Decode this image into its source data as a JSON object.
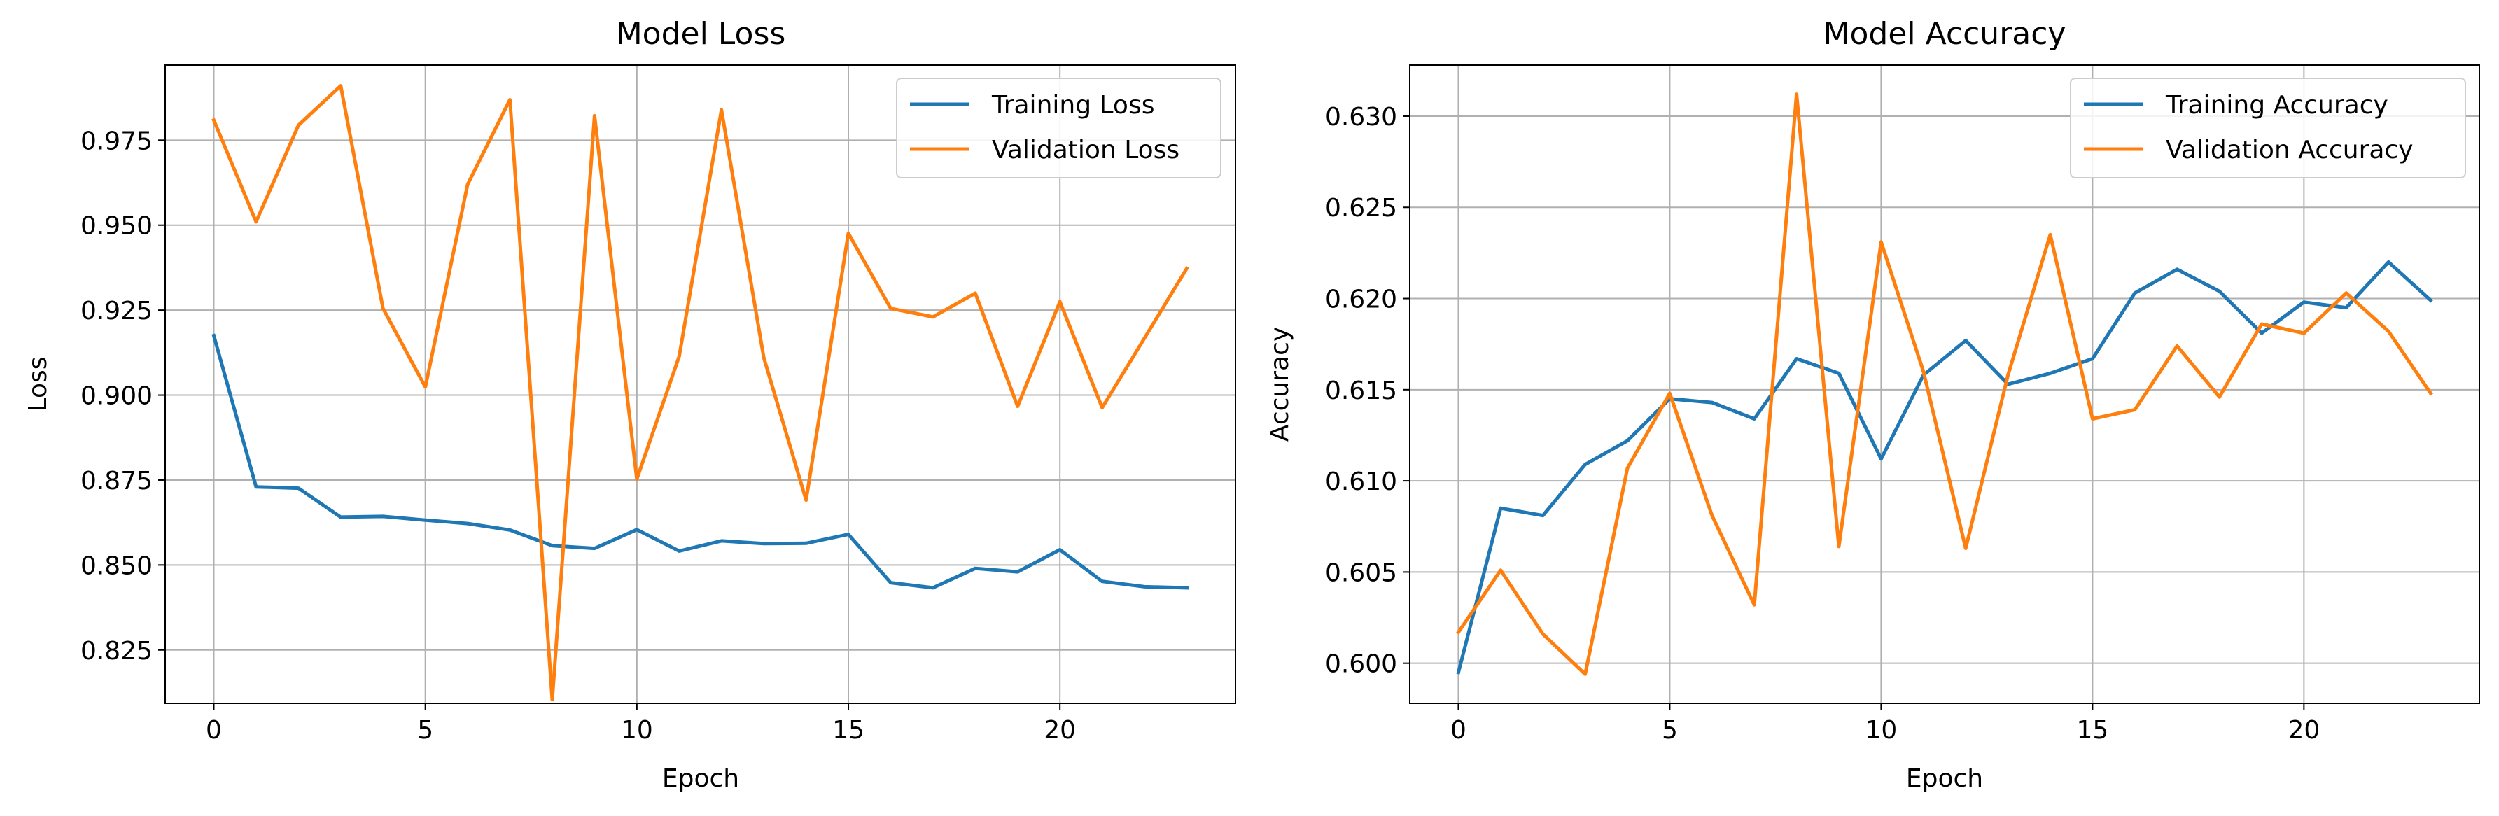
{
  "chart_data": [
    {
      "type": "line",
      "title": "Model Loss",
      "xlabel": "Epoch",
      "ylabel": "Loss",
      "xlim": [
        -1.15,
        24.15
      ],
      "ylim": [
        0.8093,
        0.9971
      ],
      "xticks": [
        0,
        5,
        10,
        15,
        20
      ],
      "xtick_labels": [
        "0",
        "5",
        "10",
        "15",
        "20"
      ],
      "yticks": [
        0.825,
        0.85,
        0.875,
        0.9,
        0.925,
        0.95,
        0.975
      ],
      "ytick_labels": [
        "0.825",
        "0.850",
        "0.875",
        "0.900",
        "0.925",
        "0.950",
        "0.975"
      ],
      "grid": true,
      "legend": "top-right",
      "x": [
        0,
        1,
        2,
        3,
        4,
        5,
        6,
        7,
        8,
        9,
        10,
        11,
        12,
        13,
        14,
        15,
        16,
        17,
        18,
        19,
        20,
        21,
        22,
        23
      ],
      "series": [
        {
          "name": "Training Loss",
          "color": "#1f77b4",
          "values": [
            0.9175,
            0.873,
            0.8726,
            0.8641,
            0.8643,
            0.8632,
            0.8622,
            0.8603,
            0.8557,
            0.8549,
            0.8604,
            0.8541,
            0.8571,
            0.8563,
            0.8564,
            0.859,
            0.8448,
            0.8433,
            0.849,
            0.848,
            0.8545,
            0.8452,
            0.8436,
            0.8433
          ]
        },
        {
          "name": "Validation Loss",
          "color": "#ff7f0e",
          "values": [
            0.9809,
            0.951,
            0.9794,
            0.991,
            0.9255,
            0.9024,
            0.962,
            0.9869,
            0.8104,
            0.9822,
            0.8753,
            0.9114,
            0.9839,
            0.911,
            0.8691,
            0.9476,
            0.9255,
            0.923,
            0.93,
            0.8967,
            0.9275,
            0.8963,
            0.9168,
            0.9373
          ]
        }
      ]
    },
    {
      "type": "line",
      "title": "Model Accuracy",
      "xlabel": "Epoch",
      "ylabel": "Accuracy",
      "xlim": [
        -1.15,
        24.15
      ],
      "ylim": [
        0.5978,
        0.6328
      ],
      "xticks": [
        0,
        5,
        10,
        15,
        20
      ],
      "xtick_labels": [
        "0",
        "5",
        "10",
        "15",
        "20"
      ],
      "yticks": [
        0.6,
        0.605,
        0.61,
        0.615,
        0.62,
        0.625,
        0.63
      ],
      "ytick_labels": [
        "0.600",
        "0.605",
        "0.610",
        "0.615",
        "0.620",
        "0.625",
        "0.630"
      ],
      "grid": true,
      "legend": "top-right",
      "x": [
        0,
        1,
        2,
        3,
        4,
        5,
        6,
        7,
        8,
        9,
        10,
        11,
        12,
        13,
        14,
        15,
        16,
        17,
        18,
        19,
        20,
        21,
        22,
        23
      ],
      "series": [
        {
          "name": "Training Accuracy",
          "color": "#1f77b4",
          "values": [
            0.5995,
            0.6085,
            0.6081,
            0.6109,
            0.6122,
            0.6145,
            0.6143,
            0.6134,
            0.6167,
            0.6159,
            0.6112,
            0.6158,
            0.6177,
            0.6153,
            0.6159,
            0.6167,
            0.6203,
            0.6216,
            0.6204,
            0.6181,
            0.6198,
            0.6195,
            0.622,
            0.6199
          ]
        },
        {
          "name": "Validation Accuracy",
          "color": "#ff7f0e",
          "values": [
            0.6017,
            0.6051,
            0.6016,
            0.5994,
            0.6107,
            0.6148,
            0.6081,
            0.6032,
            0.6312,
            0.6064,
            0.6231,
            0.616,
            0.6063,
            0.6158,
            0.6235,
            0.6134,
            0.6139,
            0.6174,
            0.6146,
            0.6186,
            0.6181,
            0.6203,
            0.6182,
            0.6148
          ]
        }
      ]
    }
  ]
}
